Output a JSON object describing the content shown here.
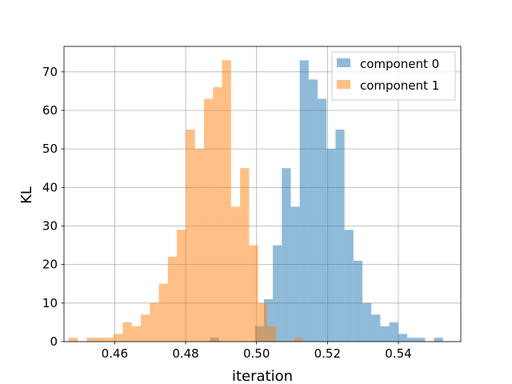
{
  "chart_data": {
    "type": "bar",
    "title": "",
    "xlabel": "iteration",
    "ylabel": "KL",
    "xlim": [
      0.4457,
      0.5576
    ],
    "ylim": [
      0,
      76.6
    ],
    "grid": true,
    "legend_position": "top-right",
    "xticks": [
      0.46,
      0.48,
      0.5,
      0.52,
      0.54
    ],
    "xtick_labels": [
      "0.46",
      "0.48",
      "0.50",
      "0.52",
      "0.54"
    ],
    "yticks": [
      0,
      10,
      20,
      30,
      40,
      50,
      60,
      70
    ],
    "ytick_labels": [
      "0",
      "10",
      "20",
      "30",
      "40",
      "50",
      "60",
      "70"
    ],
    "series": [
      {
        "name": "component 0",
        "color": "#1f77b4",
        "opacity": 0.5,
        "bin_start": 0.4844,
        "bin_width": 0.002525,
        "counts": [
          0,
          1,
          0,
          0,
          0,
          0,
          4,
          11,
          25,
          45,
          35,
          73,
          68,
          63,
          50,
          55,
          29,
          21,
          10,
          7,
          4,
          5,
          2,
          1,
          1,
          0,
          1
        ]
      },
      {
        "name": "component 1",
        "color": "#ff7f0e",
        "opacity": 0.5,
        "bin_start": 0.447,
        "bin_width": 0.002545,
        "counts": [
          1,
          0,
          1,
          1,
          1,
          2,
          5,
          4,
          7,
          10,
          15,
          22,
          29,
          55,
          50,
          63,
          66,
          73,
          35,
          45,
          25,
          10,
          4,
          0,
          0,
          1
        ]
      }
    ]
  }
}
